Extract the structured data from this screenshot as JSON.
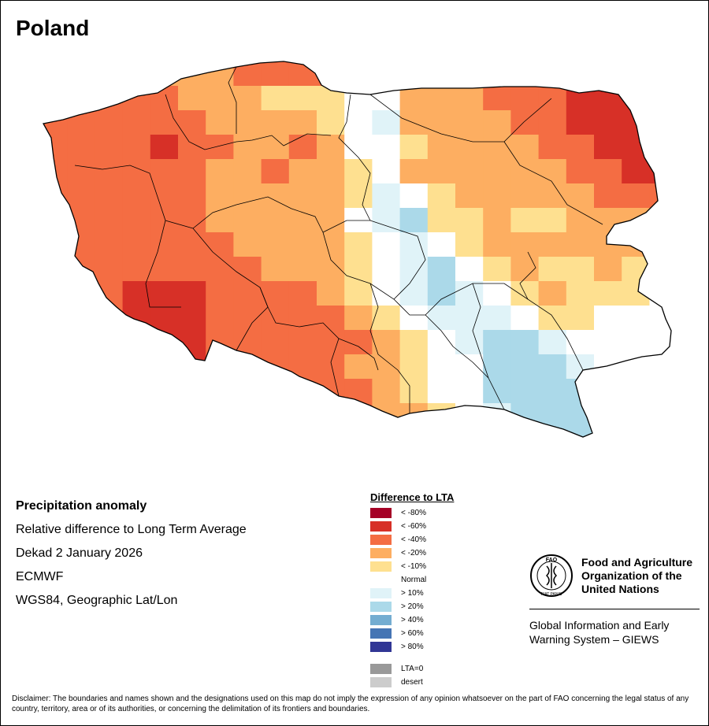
{
  "map": {
    "country": "Poland",
    "cells": [
      [
        4,
        20,
        20,
        20,
        20,
        20,
        20,
        40,
        40,
        40,
        40,
        10,
        10,
        20,
        40,
        40,
        40,
        40,
        40,
        60,
        60,
        80,
        80
      ],
      [
        40,
        40,
        40,
        40,
        40,
        20,
        20,
        20,
        10,
        10,
        10,
        0,
        0,
        20,
        20,
        20,
        40,
        40,
        40,
        60,
        60,
        60,
        80
      ],
      [
        40,
        40,
        40,
        40,
        40,
        40,
        20,
        20,
        20,
        20,
        10,
        0,
        -10,
        20,
        20,
        20,
        20,
        40,
        40,
        60,
        60,
        60,
        80
      ],
      [
        40,
        40,
        40,
        40,
        60,
        40,
        40,
        20,
        20,
        40,
        20,
        0,
        0,
        10,
        20,
        20,
        20,
        20,
        40,
        40,
        60,
        60,
        80
      ],
      [
        40,
        40,
        40,
        40,
        40,
        40,
        20,
        20,
        40,
        20,
        20,
        10,
        0,
        20,
        20,
        20,
        20,
        20,
        20,
        40,
        40,
        60,
        60
      ],
      [
        40,
        40,
        40,
        40,
        40,
        40,
        20,
        20,
        20,
        20,
        20,
        10,
        -10,
        0,
        10,
        20,
        20,
        20,
        20,
        20,
        40,
        40,
        40
      ],
      [
        40,
        40,
        40,
        40,
        40,
        40,
        20,
        20,
        20,
        20,
        20,
        0,
        -10,
        -20,
        10,
        10,
        20,
        10,
        10,
        20,
        20,
        20,
        40
      ],
      [
        40,
        40,
        40,
        40,
        40,
        40,
        40,
        20,
        20,
        20,
        20,
        10,
        0,
        -10,
        0,
        10,
        20,
        20,
        20,
        20,
        20,
        20,
        20
      ],
      [
        40,
        40,
        40,
        40,
        40,
        40,
        40,
        40,
        20,
        20,
        20,
        10,
        0,
        -10,
        -20,
        0,
        10,
        20,
        10,
        10,
        20,
        10,
        0
      ],
      [
        10,
        40,
        40,
        60,
        60,
        60,
        40,
        40,
        40,
        40,
        20,
        10,
        0,
        -10,
        -20,
        -10,
        0,
        10,
        20,
        10,
        10,
        10,
        0
      ],
      [
        40,
        40,
        40,
        60,
        60,
        60,
        40,
        40,
        40,
        40,
        40,
        20,
        10,
        0,
        -10,
        -10,
        -10,
        0,
        10,
        10,
        0,
        0,
        0
      ],
      [
        40,
        40,
        60,
        60,
        60,
        60,
        40,
        40,
        40,
        40,
        40,
        40,
        20,
        10,
        0,
        -10,
        -20,
        -20,
        -10,
        0,
        0,
        0,
        0
      ],
      [
        4,
        40,
        60,
        60,
        60,
        60,
        40,
        40,
        40,
        40,
        40,
        20,
        20,
        10,
        0,
        0,
        -20,
        -20,
        -20,
        -10,
        0,
        0,
        0
      ],
      [
        4,
        40,
        40,
        60,
        60,
        60,
        40,
        40,
        40,
        40,
        40,
        40,
        20,
        10,
        0,
        0,
        -20,
        -20,
        -20,
        -20,
        0,
        0,
        4
      ],
      [
        4,
        4,
        40,
        40,
        40,
        40,
        40,
        40,
        40,
        40,
        40,
        40,
        20,
        20,
        10,
        0,
        -10,
        -20,
        -20,
        -20,
        -10,
        0,
        4
      ],
      [
        4,
        4,
        4,
        4,
        40,
        40,
        40,
        40,
        40,
        40,
        40,
        40,
        40,
        20,
        10,
        0,
        -10,
        -20,
        -20,
        -20,
        -20,
        0,
        4
      ],
      [
        4,
        4,
        4,
        4,
        4,
        4,
        4,
        4,
        40,
        40,
        40,
        40,
        20,
        20,
        10,
        0,
        -40,
        -40,
        -20,
        -20,
        -10,
        -40,
        4
      ]
    ]
  },
  "title": "Poland",
  "info": {
    "heading": "Precipitation anomaly",
    "line1": "Relative difference to Long Term Average",
    "line2": "Dekad 2 January 2026",
    "line3": "ECMWF",
    "line4": "WGS84, Geographic Lat/Lon"
  },
  "legend": {
    "title": "Difference to LTA",
    "items": [
      {
        "label": "< -80%",
        "color": "#a50026"
      },
      {
        "label": "< -60%",
        "color": "#d73027"
      },
      {
        "label": "< -40%",
        "color": "#f46d43"
      },
      {
        "label": "< -20%",
        "color": "#fdae61"
      },
      {
        "label": "< -10%",
        "color": "#fee090"
      },
      {
        "label": "Normal",
        "color": "#ffffff"
      },
      {
        "label": "> 10%",
        "color": "#e0f3f8"
      },
      {
        "label": "> 20%",
        "color": "#abd9e9"
      },
      {
        "label": "> 40%",
        "color": "#74add1"
      },
      {
        "label": "> 60%",
        "color": "#4575b4"
      },
      {
        "label": "> 80%",
        "color": "#313695"
      }
    ],
    "extra": [
      {
        "label": "LTA=0",
        "color": "#999999"
      },
      {
        "label": "desert",
        "color": "#cccccc"
      }
    ]
  },
  "fao": {
    "name": "Food and Agriculture Organization of the United Nations",
    "logo_text": "FAO",
    "motto": "FIAT PANIS",
    "system": "Global Information and Early Warning System – GIEWS"
  },
  "disclaimer": "Disclaimer: The boundaries and names shown and the designations used on this map do not imply the expression of any opinion whatsoever on the part of FAO concerning the legal status of any country, territory, area or of its authorities, or concerning the delimitation of its frontiers and boundaries."
}
